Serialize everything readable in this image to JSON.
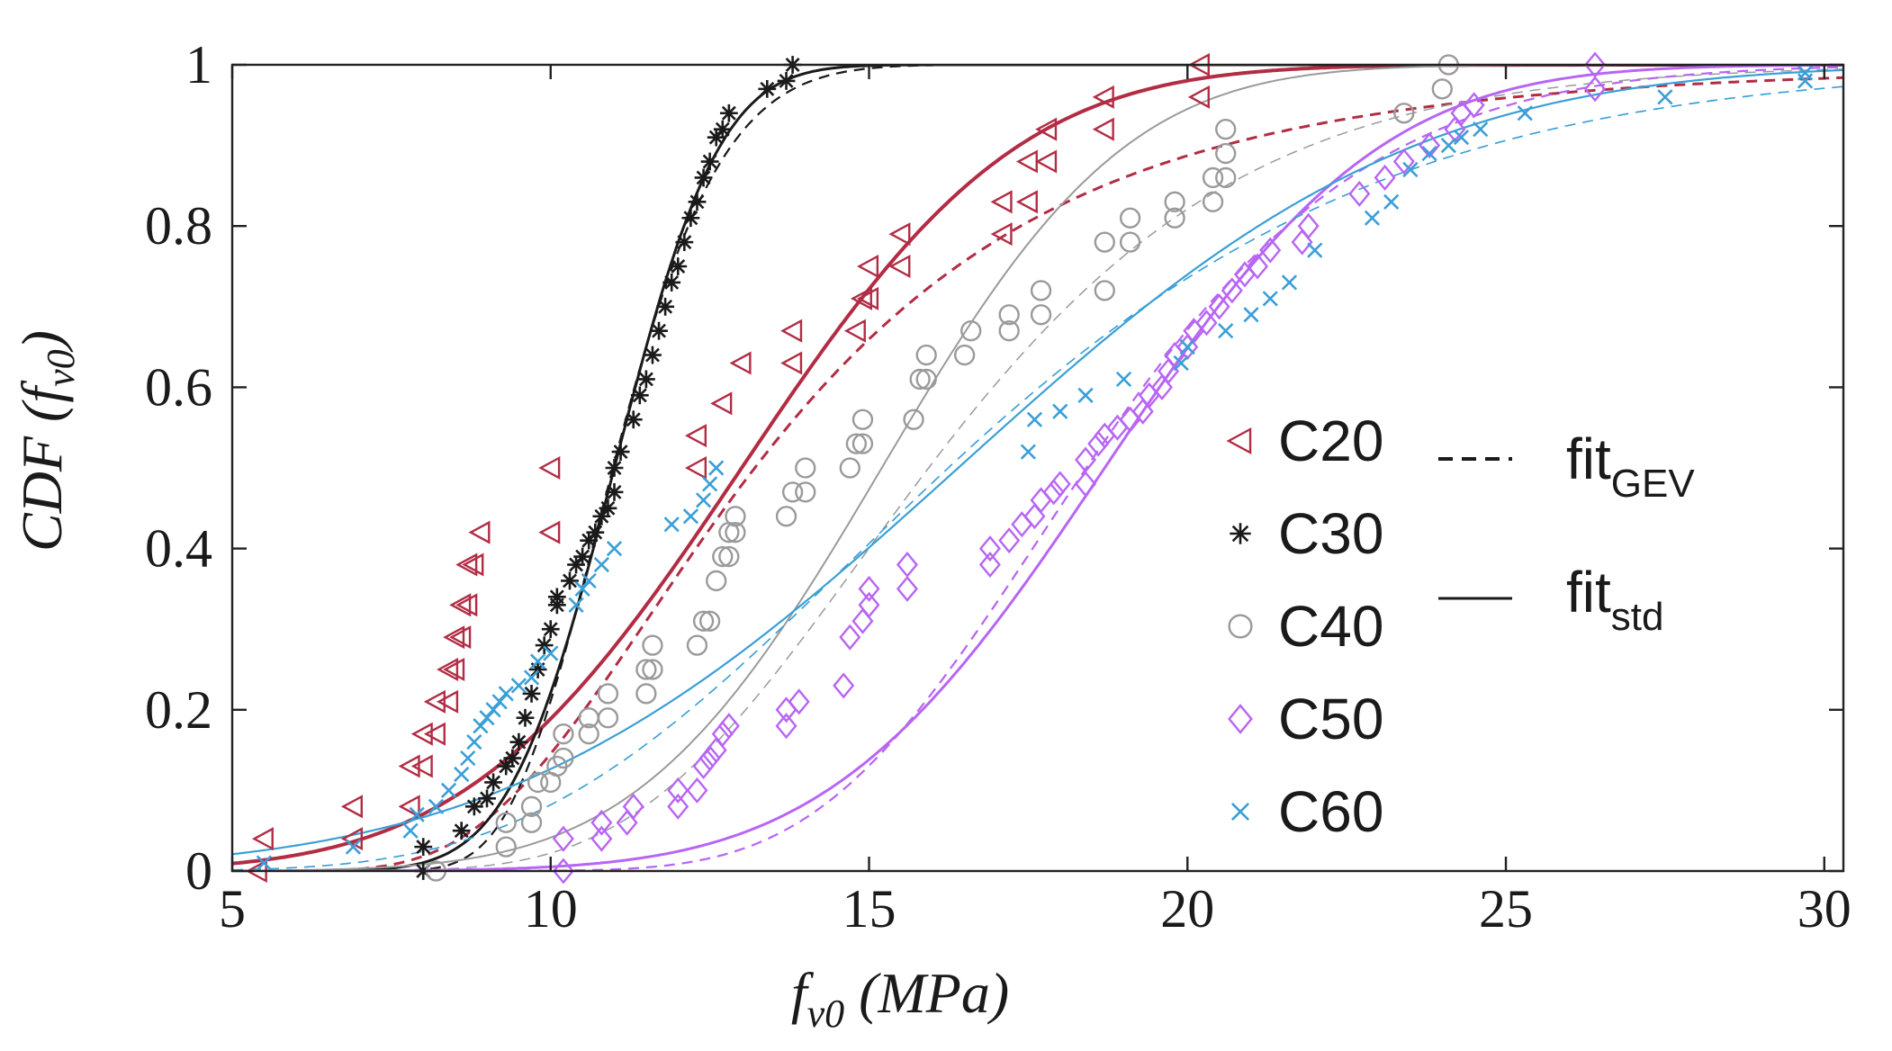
{
  "chart_data": {
    "type": "scatter",
    "title": "",
    "xlabel": {
      "main": "f",
      "sub": "v0",
      "tail": " (MPa)"
    },
    "ylabel": {
      "prefix": "CDF (f",
      "sub": "v0",
      "suffix": ")"
    },
    "xlim": [
      5,
      30.3
    ],
    "ylim": [
      0,
      1
    ],
    "xticks": [
      5,
      10,
      15,
      20,
      25,
      30
    ],
    "xtick_labels": [
      "5",
      "10",
      "15",
      "20",
      "25",
      "30"
    ],
    "yticks": [
      0,
      0.2,
      0.4,
      0.6,
      0.8,
      1
    ],
    "ytick_labels": [
      "0",
      "0.2",
      "0.4",
      "0.6",
      "0.8",
      "1"
    ],
    "legend_placement": "center-right",
    "fit_legend": {
      "gev": {
        "main": "fit",
        "sub": "GEV",
        "style": "dashed"
      },
      "std": {
        "main": "fit",
        "sub": "std",
        "style": "solid"
      }
    },
    "series": [
      {
        "name": "C20",
        "marker": "triangle-left",
        "color": "#b22c44",
        "fit_std": {
          "mu": 13.0,
          "sigma": 3.4
        },
        "fit_gev": {
          "mu": 12.0,
          "sigma": 3.2,
          "xi": 0.15
        },
        "points": [
          [
            5.4,
            0.0
          ],
          [
            5.5,
            0.04
          ],
          [
            6.9,
            0.04
          ],
          [
            6.9,
            0.08
          ],
          [
            7.8,
            0.08
          ],
          [
            7.8,
            0.13
          ],
          [
            8.0,
            0.13
          ],
          [
            8.0,
            0.17
          ],
          [
            8.2,
            0.17
          ],
          [
            8.2,
            0.21
          ],
          [
            8.4,
            0.21
          ],
          [
            8.4,
            0.25
          ],
          [
            8.5,
            0.25
          ],
          [
            8.5,
            0.29
          ],
          [
            8.6,
            0.29
          ],
          [
            8.6,
            0.33
          ],
          [
            8.7,
            0.33
          ],
          [
            8.7,
            0.38
          ],
          [
            8.8,
            0.38
          ],
          [
            8.9,
            0.42
          ],
          [
            10.0,
            0.42
          ],
          [
            10.0,
            0.5
          ],
          [
            12.3,
            0.5
          ],
          [
            12.3,
            0.54
          ],
          [
            12.7,
            0.58
          ],
          [
            13.0,
            0.63
          ],
          [
            13.8,
            0.63
          ],
          [
            13.8,
            0.67
          ],
          [
            14.8,
            0.67
          ],
          [
            14.9,
            0.71
          ],
          [
            15.0,
            0.71
          ],
          [
            15.0,
            0.75
          ],
          [
            15.5,
            0.75
          ],
          [
            15.5,
            0.79
          ],
          [
            17.1,
            0.79
          ],
          [
            17.1,
            0.83
          ],
          [
            17.5,
            0.83
          ],
          [
            17.5,
            0.88
          ],
          [
            17.8,
            0.88
          ],
          [
            17.8,
            0.92
          ],
          [
            18.7,
            0.92
          ],
          [
            18.7,
            0.96
          ],
          [
            20.2,
            0.96
          ],
          [
            20.2,
            1.0
          ]
        ]
      },
      {
        "name": "C30",
        "marker": "asterisk",
        "color": "#1a1a1a",
        "fit_std": {
          "mu": 11.0,
          "sigma": 1.3
        },
        "fit_gev": {
          "mu": 10.55,
          "sigma": 1.2,
          "xi": -0.15
        },
        "points": [
          [
            8.0,
            0.0
          ],
          [
            8.0,
            0.03
          ],
          [
            8.6,
            0.05
          ],
          [
            8.8,
            0.08
          ],
          [
            9.0,
            0.09
          ],
          [
            9.1,
            0.11
          ],
          [
            9.3,
            0.13
          ],
          [
            9.4,
            0.14
          ],
          [
            9.5,
            0.16
          ],
          [
            9.6,
            0.19
          ],
          [
            9.7,
            0.22
          ],
          [
            9.8,
            0.25
          ],
          [
            9.9,
            0.28
          ],
          [
            10.0,
            0.3
          ],
          [
            10.1,
            0.33
          ],
          [
            10.1,
            0.34
          ],
          [
            10.3,
            0.36
          ],
          [
            10.4,
            0.38
          ],
          [
            10.5,
            0.39
          ],
          [
            10.6,
            0.41
          ],
          [
            10.7,
            0.42
          ],
          [
            10.8,
            0.44
          ],
          [
            10.9,
            0.45
          ],
          [
            11.0,
            0.47
          ],
          [
            11.0,
            0.5
          ],
          [
            11.1,
            0.52
          ],
          [
            11.3,
            0.56
          ],
          [
            11.4,
            0.59
          ],
          [
            11.5,
            0.61
          ],
          [
            11.6,
            0.64
          ],
          [
            11.7,
            0.67
          ],
          [
            11.8,
            0.7
          ],
          [
            11.9,
            0.73
          ],
          [
            12.0,
            0.75
          ],
          [
            12.1,
            0.78
          ],
          [
            12.2,
            0.81
          ],
          [
            12.3,
            0.83
          ],
          [
            12.4,
            0.86
          ],
          [
            12.5,
            0.88
          ],
          [
            12.6,
            0.91
          ],
          [
            12.7,
            0.92
          ],
          [
            12.8,
            0.94
          ],
          [
            13.4,
            0.97
          ],
          [
            13.7,
            0.98
          ],
          [
            13.8,
            1.0
          ]
        ]
      },
      {
        "name": "C40",
        "marker": "circle",
        "color": "#9a9a9a",
        "fit_std": {
          "mu": 15.2,
          "sigma": 3.0
        },
        "fit_gev": {
          "mu": 14.7,
          "sigma": 3.4,
          "xi": -0.05
        },
        "points": [
          [
            8.2,
            0.0
          ],
          [
            9.3,
            0.03
          ],
          [
            9.3,
            0.06
          ],
          [
            9.7,
            0.06
          ],
          [
            9.7,
            0.08
          ],
          [
            9.8,
            0.11
          ],
          [
            10.0,
            0.11
          ],
          [
            10.1,
            0.13
          ],
          [
            10.2,
            0.14
          ],
          [
            10.2,
            0.17
          ],
          [
            10.6,
            0.17
          ],
          [
            10.6,
            0.19
          ],
          [
            10.9,
            0.19
          ],
          [
            10.9,
            0.22
          ],
          [
            11.5,
            0.22
          ],
          [
            11.5,
            0.25
          ],
          [
            11.6,
            0.25
          ],
          [
            11.6,
            0.28
          ],
          [
            12.3,
            0.28
          ],
          [
            12.4,
            0.31
          ],
          [
            12.5,
            0.31
          ],
          [
            12.6,
            0.36
          ],
          [
            12.7,
            0.39
          ],
          [
            12.8,
            0.39
          ],
          [
            12.8,
            0.42
          ],
          [
            12.9,
            0.42
          ],
          [
            12.9,
            0.44
          ],
          [
            13.7,
            0.44
          ],
          [
            13.8,
            0.47
          ],
          [
            14.0,
            0.47
          ],
          [
            14.0,
            0.5
          ],
          [
            14.7,
            0.5
          ],
          [
            14.8,
            0.53
          ],
          [
            14.9,
            0.53
          ],
          [
            14.9,
            0.56
          ],
          [
            15.7,
            0.56
          ],
          [
            15.8,
            0.61
          ],
          [
            15.9,
            0.61
          ],
          [
            15.9,
            0.64
          ],
          [
            16.5,
            0.64
          ],
          [
            16.6,
            0.67
          ],
          [
            17.2,
            0.67
          ],
          [
            17.2,
            0.69
          ],
          [
            17.7,
            0.69
          ],
          [
            17.7,
            0.72
          ],
          [
            18.7,
            0.72
          ],
          [
            18.7,
            0.78
          ],
          [
            19.1,
            0.78
          ],
          [
            19.1,
            0.81
          ],
          [
            19.8,
            0.81
          ],
          [
            19.8,
            0.83
          ],
          [
            20.4,
            0.83
          ],
          [
            20.4,
            0.86
          ],
          [
            20.6,
            0.86
          ],
          [
            20.6,
            0.89
          ],
          [
            20.6,
            0.92
          ],
          [
            23.4,
            0.94
          ],
          [
            24.0,
            0.97
          ],
          [
            24.1,
            1.0
          ]
        ]
      },
      {
        "name": "C50",
        "marker": "diamond",
        "color": "#b865f4",
        "fit_std": {
          "mu": 18.7,
          "sigma": 3.4
        },
        "fit_gev": {
          "mu": 17.3,
          "sigma": 3.1,
          "xi": -0.12
        },
        "points": [
          [
            10.2,
            0.0
          ],
          [
            10.2,
            0.04
          ],
          [
            10.8,
            0.04
          ],
          [
            10.8,
            0.06
          ],
          [
            11.2,
            0.06
          ],
          [
            11.3,
            0.08
          ],
          [
            12.0,
            0.08
          ],
          [
            12.0,
            0.1
          ],
          [
            12.3,
            0.1
          ],
          [
            12.4,
            0.13
          ],
          [
            12.5,
            0.14
          ],
          [
            12.6,
            0.15
          ],
          [
            12.7,
            0.17
          ],
          [
            12.8,
            0.18
          ],
          [
            13.7,
            0.18
          ],
          [
            13.7,
            0.2
          ],
          [
            13.9,
            0.21
          ],
          [
            14.6,
            0.23
          ],
          [
            14.7,
            0.29
          ],
          [
            14.9,
            0.31
          ],
          [
            15.0,
            0.33
          ],
          [
            15.0,
            0.35
          ],
          [
            15.6,
            0.35
          ],
          [
            15.6,
            0.38
          ],
          [
            16.9,
            0.38
          ],
          [
            16.9,
            0.4
          ],
          [
            17.2,
            0.41
          ],
          [
            17.4,
            0.43
          ],
          [
            17.6,
            0.44
          ],
          [
            17.7,
            0.46
          ],
          [
            17.9,
            0.47
          ],
          [
            18.0,
            0.48
          ],
          [
            18.4,
            0.48
          ],
          [
            18.4,
            0.51
          ],
          [
            18.6,
            0.53
          ],
          [
            18.7,
            0.54
          ],
          [
            18.9,
            0.55
          ],
          [
            19.1,
            0.56
          ],
          [
            19.3,
            0.57
          ],
          [
            19.4,
            0.59
          ],
          [
            19.6,
            0.6
          ],
          [
            19.7,
            0.62
          ],
          [
            19.8,
            0.64
          ],
          [
            20.0,
            0.65
          ],
          [
            20.1,
            0.67
          ],
          [
            20.3,
            0.68
          ],
          [
            20.5,
            0.7
          ],
          [
            20.7,
            0.72
          ],
          [
            20.9,
            0.74
          ],
          [
            21.1,
            0.75
          ],
          [
            21.3,
            0.77
          ],
          [
            21.8,
            0.78
          ],
          [
            21.9,
            0.8
          ],
          [
            22.7,
            0.84
          ],
          [
            23.1,
            0.86
          ],
          [
            23.4,
            0.88
          ],
          [
            23.8,
            0.9
          ],
          [
            24.2,
            0.92
          ],
          [
            24.3,
            0.94
          ],
          [
            24.5,
            0.95
          ],
          [
            26.4,
            0.97
          ],
          [
            26.4,
            1.0
          ]
        ]
      },
      {
        "name": "C60",
        "marker": "x",
        "color": "#3a9fd6",
        "fit_std": {
          "mu": 16.4,
          "sigma": 5.6
        },
        "fit_gev": {
          "mu": 14.5,
          "sigma": 4.8,
          "xi": -0.05
        },
        "points": [
          [
            5.5,
            0.01
          ],
          [
            6.9,
            0.03
          ],
          [
            7.8,
            0.05
          ],
          [
            7.9,
            0.07
          ],
          [
            8.2,
            0.08
          ],
          [
            8.4,
            0.1
          ],
          [
            8.6,
            0.12
          ],
          [
            8.7,
            0.14
          ],
          [
            8.8,
            0.16
          ],
          [
            8.9,
            0.18
          ],
          [
            9.0,
            0.19
          ],
          [
            9.1,
            0.2
          ],
          [
            9.2,
            0.21
          ],
          [
            9.3,
            0.22
          ],
          [
            9.5,
            0.23
          ],
          [
            9.7,
            0.24
          ],
          [
            9.8,
            0.26
          ],
          [
            10.0,
            0.27
          ],
          [
            10.4,
            0.33
          ],
          [
            10.5,
            0.35
          ],
          [
            10.6,
            0.36
          ],
          [
            10.8,
            0.38
          ],
          [
            11.0,
            0.4
          ],
          [
            11.9,
            0.43
          ],
          [
            12.2,
            0.44
          ],
          [
            12.4,
            0.46
          ],
          [
            12.5,
            0.48
          ],
          [
            12.6,
            0.5
          ],
          [
            17.5,
            0.52
          ],
          [
            17.6,
            0.56
          ],
          [
            18.0,
            0.57
          ],
          [
            18.4,
            0.59
          ],
          [
            19.0,
            0.61
          ],
          [
            19.9,
            0.63
          ],
          [
            20.0,
            0.65
          ],
          [
            20.6,
            0.67
          ],
          [
            21.0,
            0.69
          ],
          [
            21.3,
            0.71
          ],
          [
            21.6,
            0.73
          ],
          [
            22.0,
            0.77
          ],
          [
            22.9,
            0.81
          ],
          [
            23.2,
            0.83
          ],
          [
            23.5,
            0.87
          ],
          [
            23.8,
            0.89
          ],
          [
            24.1,
            0.9
          ],
          [
            24.3,
            0.91
          ],
          [
            24.6,
            0.92
          ],
          [
            25.3,
            0.94
          ],
          [
            27.5,
            0.96
          ],
          [
            29.7,
            0.98
          ],
          [
            29.7,
            0.99
          ]
        ]
      }
    ]
  }
}
